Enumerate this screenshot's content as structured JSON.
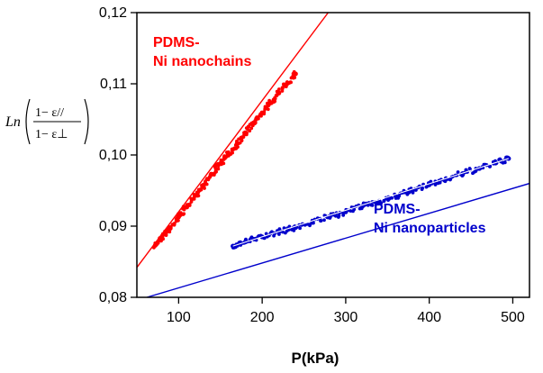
{
  "chart_data": {
    "type": "scatter",
    "title": "",
    "xlabel": "P(kPa)",
    "ylabel": {
      "prefix": "Ln",
      "numerator": "1− ε//",
      "denominator": "1− ε⊥"
    },
    "xlim": [
      50,
      520
    ],
    "ylim": [
      0.08,
      0.12
    ],
    "x_ticks": [
      {
        "value": 100,
        "label": "100"
      },
      {
        "value": 200,
        "label": "200"
      },
      {
        "value": 300,
        "label": "300"
      },
      {
        "value": 400,
        "label": "400"
      },
      {
        "value": 500,
        "label": "500"
      }
    ],
    "y_ticks": [
      {
        "value": 0.08,
        "label": "0,08"
      },
      {
        "value": 0.09,
        "label": "0,09"
      },
      {
        "value": 0.1,
        "label": "0,10"
      },
      {
        "value": 0.11,
        "label": "0,11"
      },
      {
        "value": 0.12,
        "label": "0,12"
      }
    ],
    "grid": false,
    "series": [
      {
        "name": "PDMS-\nNi nanochains",
        "label_lines": [
          "PDMS-",
          "Ni nanochains"
        ],
        "color": "#ff0000",
        "points_x": [
          72,
          80,
          90,
          100,
          110,
          120,
          130,
          140,
          150,
          160,
          170,
          180,
          190,
          200,
          210,
          220,
          230,
          240
        ],
        "points_y": [
          0.0873,
          0.0885,
          0.0897,
          0.0913,
          0.0928,
          0.0943,
          0.0958,
          0.0973,
          0.0988,
          0.1001,
          0.1016,
          0.1031,
          0.1045,
          0.1059,
          0.1073,
          0.1087,
          0.1101,
          0.1114
        ],
        "fit": {
          "x": [
            50,
            279
          ],
          "y": [
            0.0842,
            0.12
          ]
        }
      },
      {
        "name": "PDMS-\nNi nanoparticles",
        "label_lines": [
          "PDMS-",
          "Ni nanoparticles"
        ],
        "color": "#0000cc",
        "points_x": [
          165,
          180,
          200,
          220,
          240,
          260,
          280,
          300,
          320,
          340,
          360,
          380,
          400,
          420,
          440,
          460,
          480,
          495
        ],
        "points_y": [
          0.0872,
          0.0878,
          0.0885,
          0.0892,
          0.0898,
          0.0906,
          0.0913,
          0.092,
          0.0928,
          0.0935,
          0.0942,
          0.095,
          0.0958,
          0.0966,
          0.0974,
          0.0981,
          0.0989,
          0.0995
        ],
        "fit": {
          "x": [
            62,
            520
          ],
          "y": [
            0.08,
            0.096
          ]
        }
      }
    ]
  }
}
